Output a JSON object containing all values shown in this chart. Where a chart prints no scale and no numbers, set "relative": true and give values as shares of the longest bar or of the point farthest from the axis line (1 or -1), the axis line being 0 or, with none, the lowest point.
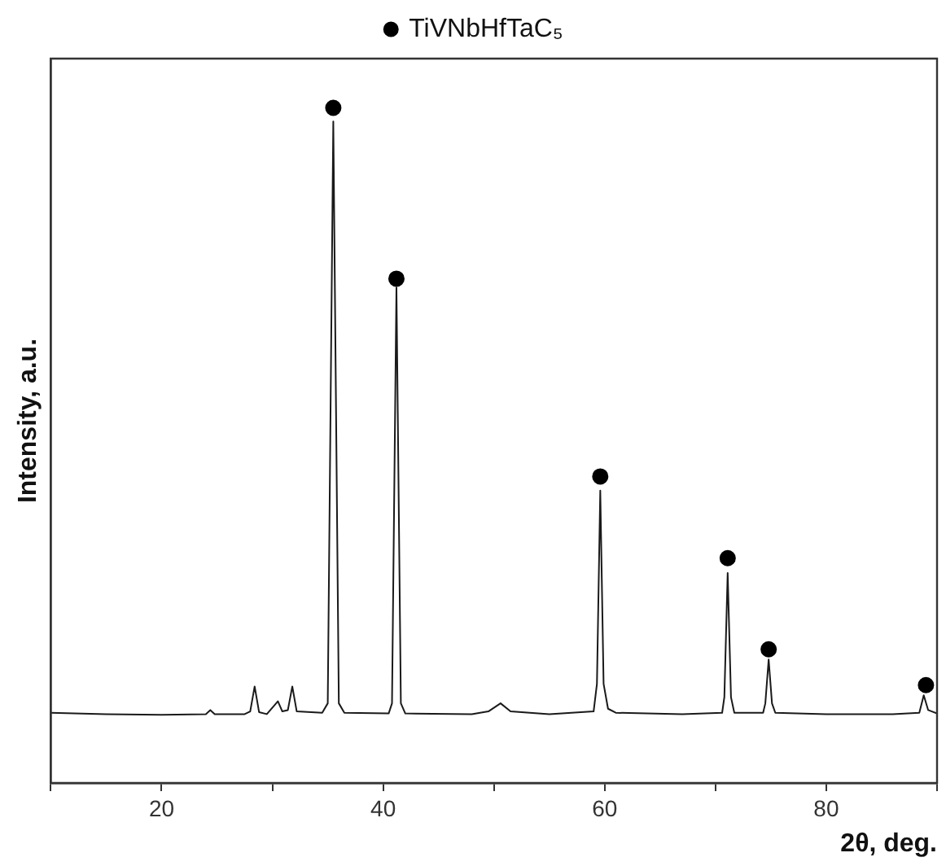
{
  "chart_data": {
    "type": "line",
    "relative": true,
    "xlabel": "2θ, deg.",
    "ylabel": "Intensity, a.u.",
    "xlim": [
      10,
      90
    ],
    "xticks": [
      {
        "value": 10,
        "label": null
      },
      20,
      {
        "value": 30,
        "label": null
      },
      40,
      {
        "value": 50,
        "label": null
      },
      60,
      {
        "value": 70,
        "label": null
      },
      80,
      {
        "value": 90,
        "label": null
      }
    ],
    "tick_labels": "x",
    "legend": "top",
    "grid": false,
    "series": [
      {
        "color": "#1a1a1a",
        "marker": "none",
        "line_style": "solid",
        "x": [
          10,
          15,
          20,
          24,
          24.4,
          24.8,
          27.5,
          28.0,
          28.4,
          28.8,
          29.5,
          30.5,
          30.9,
          31.4,
          31.8,
          32.2,
          34.5,
          35.0,
          35.5,
          36.0,
          36.5,
          40.5,
          40.8,
          41.2,
          41.6,
          42.0,
          48,
          49.5,
          50.6,
          51.5,
          55,
          59.0,
          59.3,
          59.6,
          59.9,
          60.3,
          61,
          67,
          70.6,
          70.8,
          71.1,
          71.4,
          71.7,
          74.3,
          74.5,
          74.8,
          75.1,
          75.4,
          80,
          86,
          88.4,
          88.8,
          89.2,
          90
        ],
        "values": [
          0.104,
          0.102,
          0.101,
          0.102,
          0.108,
          0.102,
          0.102,
          0.106,
          0.143,
          0.105,
          0.102,
          0.121,
          0.106,
          0.108,
          0.143,
          0.106,
          0.104,
          0.118,
          0.98,
          0.118,
          0.104,
          0.103,
          0.118,
          0.734,
          0.118,
          0.103,
          0.102,
          0.106,
          0.118,
          0.106,
          0.102,
          0.106,
          0.147,
          0.433,
          0.147,
          0.11,
          0.104,
          0.102,
          0.104,
          0.127,
          0.311,
          0.127,
          0.104,
          0.104,
          0.118,
          0.183,
          0.118,
          0.104,
          0.102,
          0.102,
          0.104,
          0.13,
          0.108,
          0.103
        ]
      },
      {
        "type": "scatter",
        "name": "TiVNbHfTaC₅",
        "color": "#000000",
        "marker": "circle",
        "x": [
          35.5,
          41.2,
          59.6,
          71.1,
          74.8,
          89.0
        ],
        "values": [
          1,
          0.747,
          0.454,
          0.333,
          0.198,
          0.145
        ]
      }
    ]
  }
}
